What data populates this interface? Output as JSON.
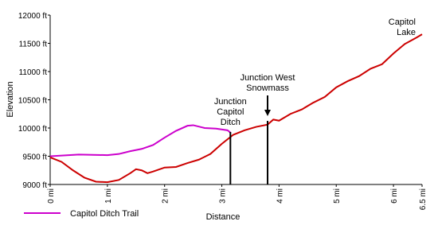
{
  "chart_data": {
    "type": "line",
    "x_label": "Distance",
    "y_label": "Elevation",
    "xlim": [
      0,
      6.5
    ],
    "ylim": [
      9000,
      12000
    ],
    "xticks": [
      {
        "value": 0,
        "label": "0 mi"
      },
      {
        "value": 1,
        "label": "1 mi"
      },
      {
        "value": 2,
        "label": "2 mi"
      },
      {
        "value": 3,
        "label": "3 mi"
      },
      {
        "value": 4,
        "label": "4 mi"
      },
      {
        "value": 5,
        "label": "5 mi"
      },
      {
        "value": 6,
        "label": "6 mi"
      },
      {
        "value": 6.5,
        "label": "6.5 mi"
      }
    ],
    "yticks": [
      {
        "value": 9000,
        "label": "9000 ft"
      },
      {
        "value": 9500,
        "label": "9500 ft"
      },
      {
        "value": 10000,
        "label": "10000 ft"
      },
      {
        "value": 10500,
        "label": "10500 ft"
      },
      {
        "value": 11000,
        "label": "11000 ft"
      },
      {
        "value": 11500,
        "label": "11500 ft"
      },
      {
        "value": 12000,
        "label": "12000 ft"
      }
    ],
    "series": [
      {
        "color": "#cc0000",
        "x": [
          0,
          0.2,
          0.4,
          0.6,
          0.8,
          1.0,
          1.2,
          1.4,
          1.5,
          1.6,
          1.7,
          1.8,
          2.0,
          2.2,
          2.4,
          2.6,
          2.8,
          3.0,
          3.2,
          3.4,
          3.6,
          3.8,
          3.9,
          4.0,
          4.2,
          4.4,
          4.6,
          4.8,
          5.0,
          5.2,
          5.4,
          5.6,
          5.8,
          6.0,
          6.2,
          6.4,
          6.5
        ],
        "values": [
          9480,
          9400,
          9250,
          9120,
          9050,
          9040,
          9080,
          9200,
          9270,
          9250,
          9200,
          9230,
          9300,
          9310,
          9380,
          9440,
          9540,
          9720,
          9880,
          9960,
          10020,
          10060,
          10150,
          10130,
          10250,
          10330,
          10450,
          10550,
          10720,
          10830,
          10920,
          11050,
          11130,
          11320,
          11490,
          11600,
          11660
        ]
      },
      {
        "name": "Capitol Ditch Trail",
        "color": "#cc00cc",
        "x": [
          0,
          0.5,
          1.0,
          1.2,
          1.4,
          1.6,
          1.8,
          2.0,
          2.2,
          2.4,
          2.5,
          2.7,
          2.9,
          3.1,
          3.15
        ],
        "values": [
          9500,
          9530,
          9520,
          9540,
          9590,
          9630,
          9700,
          9830,
          9950,
          10040,
          10050,
          10000,
          9990,
          9960,
          9920
        ]
      }
    ],
    "annotations": [
      {
        "text": [
          "Junction",
          "Capitol",
          "Ditch"
        ],
        "x": 3.15
      },
      {
        "text": [
          "Junction West",
          "Snowmass"
        ],
        "x": 3.8
      },
      {
        "text": [
          "Capitol",
          "Lake"
        ]
      }
    ]
  }
}
